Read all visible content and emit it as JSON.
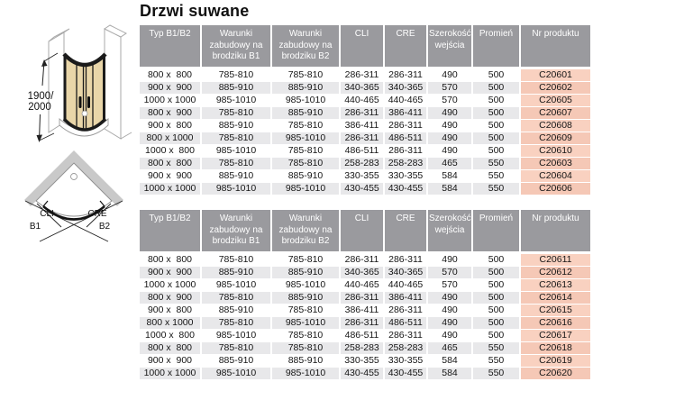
{
  "page": {
    "title": "Drzwi suwane"
  },
  "colors": {
    "header_bg": "#9a9a9e",
    "row_alt_bg": "#e8e8ea",
    "product_col_bg": "#f9d1c0",
    "product_col_bg_alt": "#f5c8b6",
    "glass_tint": "#e9d6a9",
    "wall_gray": "#c9c9c9"
  },
  "diagrams": {
    "front_view": {
      "height_label_line1": "1900/",
      "height_label_line2": "2000"
    },
    "top_view": {
      "cli_label": "CLI",
      "cre_label": "CRE",
      "b1_label": "B1",
      "b2_label": "B2"
    }
  },
  "tables": [
    {
      "headers": [
        "Typ B1/B2",
        "Warunki zabudowy na brodziku B1",
        "Warunki zabudowy na brodziku B2",
        "CLI",
        "CRE",
        "Szerokość wejścia",
        "Promień",
        "Nr produktu"
      ],
      "rows": [
        [
          "800 x  800",
          "785-810",
          "785-810",
          "286-311",
          "286-311",
          "490",
          "500",
          "C20601"
        ],
        [
          "900 x  900",
          "885-910",
          "885-910",
          "340-365",
          "340-365",
          "570",
          "500",
          "C20602"
        ],
        [
          "1000 x 1000",
          "985-1010",
          "985-1010",
          "440-465",
          "440-465",
          "570",
          "500",
          "C20605"
        ],
        [
          "800 x  900",
          "785-810",
          "885-910",
          "286-311",
          "386-411",
          "490",
          "500",
          "C20607"
        ],
        [
          "900 x  800",
          "885-910",
          "785-810",
          "386-411",
          "286-311",
          "490",
          "500",
          "C20608"
        ],
        [
          "800 x 1000",
          "785-810",
          "985-1010",
          "286-311",
          "486-511",
          "490",
          "500",
          "C20609"
        ],
        [
          "1000 x  800",
          "985-1010",
          "785-810",
          "486-511",
          "286-311",
          "490",
          "500",
          "C20610"
        ],
        [
          "800 x  800",
          "785-810",
          "785-810",
          "258-283",
          "258-283",
          "465",
          "550",
          "C20603"
        ],
        [
          "900 x  900",
          "885-910",
          "885-910",
          "330-355",
          "330-355",
          "584",
          "550",
          "C20604"
        ],
        [
          "1000 x 1000",
          "985-1010",
          "985-1010",
          "430-455",
          "430-455",
          "584",
          "550",
          "C20606"
        ]
      ]
    },
    {
      "headers": [
        "Typ B1/B2",
        "Warunki zabudowy na brodziku B1",
        "Warunki zabudowy na brodziku B2",
        "CLI",
        "CRE",
        "Szerokość wejścia",
        "Promień",
        "Nr produktu"
      ],
      "rows": [
        [
          "800 x  800",
          "785-810",
          "785-810",
          "286-311",
          "286-311",
          "490",
          "500",
          "C20611"
        ],
        [
          "900 x  900",
          "885-910",
          "885-910",
          "340-365",
          "340-365",
          "570",
          "500",
          "C20612"
        ],
        [
          "1000 x 1000",
          "985-1010",
          "985-1010",
          "440-465",
          "440-465",
          "570",
          "500",
          "C20613"
        ],
        [
          "800 x  900",
          "785-810",
          "885-910",
          "286-311",
          "386-411",
          "490",
          "500",
          "C20614"
        ],
        [
          "900 x  800",
          "885-910",
          "785-810",
          "386-411",
          "286-311",
          "490",
          "500",
          "C20615"
        ],
        [
          "800 x 1000",
          "785-810",
          "985-1010",
          "286-311",
          "486-511",
          "490",
          "500",
          "C20616"
        ],
        [
          "1000 x  800",
          "985-1010",
          "785-810",
          "486-511",
          "286-311",
          "490",
          "500",
          "C20617"
        ],
        [
          "800 x  800",
          "785-810",
          "785-810",
          "258-283",
          "258-283",
          "465",
          "550",
          "C20618"
        ],
        [
          "900 x  900",
          "885-910",
          "885-910",
          "330-355",
          "330-355",
          "584",
          "550",
          "C20619"
        ],
        [
          "1000 x 1000",
          "985-1010",
          "985-1010",
          "430-455",
          "430-455",
          "584",
          "550",
          "C20620"
        ]
      ]
    }
  ]
}
